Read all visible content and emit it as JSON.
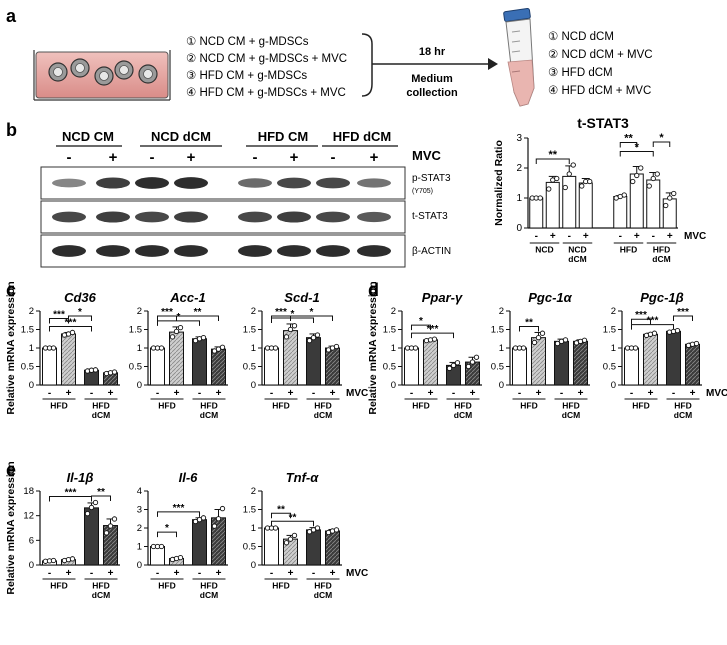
{
  "figure": {
    "panel_labels": [
      "a",
      "b",
      "c",
      "d",
      "e"
    ],
    "mvc_word": "MVC",
    "minus": "-",
    "plus": "+"
  },
  "panel_a": {
    "conditions": [
      "① NCD CM + g-MDSCs",
      "② NCD CM + g-MDSCs + MVC",
      "③ HFD CM + g-MDSCs",
      "④ HFD CM + g-MDSCs + MVC"
    ],
    "time": "18 hr",
    "collection": [
      "Medium",
      "collection"
    ],
    "outputs": [
      "① NCD dCM",
      "② NCD dCM + MVC",
      "③ HFD dCM",
      "④ HFD dCM + MVC"
    ]
  },
  "panel_b": {
    "blot_groups": [
      "NCD CM",
      "NCD dCM",
      "HFD CM",
      "HFD dCM"
    ],
    "mvc_label": "MVC",
    "blot_rows": [
      "p-STAT3",
      "t-STAT3",
      "β-ACTIN"
    ],
    "blot_row_sub": "(Y705)",
    "p_stat3_band_intensity": [
      0.45,
      0.85,
      0.95,
      0.95,
      0.6,
      0.8,
      0.8,
      0.55
    ],
    "t_stat3_band_intensity": [
      0.8,
      0.85,
      0.8,
      0.85,
      0.8,
      0.85,
      0.8,
      0.7
    ],
    "actin_band_intensity": [
      0.95,
      0.95,
      0.95,
      0.95,
      0.95,
      0.95,
      0.95,
      0.95
    ]
  },
  "chart_data": [
    {
      "type": "bar",
      "panel": "b",
      "title": "t-STAT3",
      "ylabel": "Normalized Ratio",
      "ylim": [
        0,
        3
      ],
      "yticks": [
        0,
        1,
        2,
        3
      ],
      "mvc": [
        "-",
        "+",
        "-",
        "+",
        "-",
        "+",
        "-",
        "+"
      ],
      "groups": [
        "NCD",
        "NCD dCM",
        "HFD",
        "HFD dCM"
      ],
      "values": [
        1.0,
        1.52,
        1.72,
        1.5,
        1.05,
        1.8,
        1.6,
        0.97
      ],
      "errors": [
        0.02,
        0.2,
        0.35,
        0.15,
        0.03,
        0.25,
        0.25,
        0.2
      ],
      "points": [
        [
          1.0,
          1.0,
          1.0
        ],
        [
          1.3,
          1.6,
          1.65
        ],
        [
          1.35,
          1.8,
          2.1
        ],
        [
          1.4,
          1.55,
          1.55
        ],
        [
          1.0,
          1.05,
          1.1
        ],
        [
          1.55,
          1.75,
          2.0
        ],
        [
          1.4,
          1.65,
          1.8
        ],
        [
          0.75,
          1.0,
          1.15
        ]
      ],
      "brackets": [
        [
          0,
          2,
          "**"
        ],
        [
          4,
          6,
          "*"
        ],
        [
          4,
          5,
          "**"
        ],
        [
          6,
          7,
          "*"
        ]
      ]
    },
    {
      "type": "bar",
      "panel": "c",
      "title": "Cd36",
      "ylabel": "Relative mRNA expression",
      "ylim": [
        0,
        2
      ],
      "yticks": [
        0,
        0.5,
        1,
        1.5,
        2
      ],
      "mvc": [
        "-",
        "+",
        "-",
        "+"
      ],
      "groups": [
        "HFD",
        "HFD dCM"
      ],
      "values": [
        1.0,
        1.38,
        0.4,
        0.33
      ],
      "errors": [
        0.02,
        0.04,
        0.03,
        0.03
      ],
      "points": [
        [
          1,
          1,
          1
        ],
        [
          1.35,
          1.38,
          1.42
        ],
        [
          0.38,
          0.4,
          0.41
        ],
        [
          0.31,
          0.33,
          0.35
        ]
      ],
      "brackets": [
        [
          0,
          2,
          "***"
        ],
        [
          0,
          1,
          "***"
        ],
        [
          1,
          2,
          "*"
        ]
      ]
    },
    {
      "type": "bar",
      "panel": "c",
      "title": "Acc-1",
      "ylabel": "",
      "ylim": [
        0,
        2
      ],
      "yticks": [
        0,
        0.5,
        1,
        1.5,
        2
      ],
      "mvc": [
        "-",
        "+",
        "-",
        "+"
      ],
      "groups": [
        "HFD",
        "HFD dCM"
      ],
      "values": [
        1.0,
        1.43,
        1.25,
        0.97
      ],
      "errors": [
        0.02,
        0.14,
        0.05,
        0.06
      ],
      "points": [
        [
          1,
          1,
          1
        ],
        [
          1.3,
          1.45,
          1.55
        ],
        [
          1.2,
          1.25,
          1.28
        ],
        [
          0.92,
          0.97,
          1.02
        ]
      ],
      "brackets": [
        [
          0,
          2,
          "*"
        ],
        [
          0,
          1,
          "***"
        ],
        [
          1,
          3,
          "**"
        ]
      ]
    },
    {
      "type": "bar",
      "panel": "c",
      "title": "Scd-1",
      "ylabel": "",
      "ylim": [
        0,
        2
      ],
      "yticks": [
        0,
        0.5,
        1,
        1.5,
        2
      ],
      "mvc": [
        "-",
        "+",
        "-",
        "+"
      ],
      "groups": [
        "HFD",
        "HFD dCM"
      ],
      "values": [
        1.0,
        1.47,
        1.28,
        1.0
      ],
      "errors": [
        0.02,
        0.18,
        0.1,
        0.05
      ],
      "points": [
        [
          1,
          1,
          1
        ],
        [
          1.3,
          1.5,
          1.6
        ],
        [
          1.2,
          1.28,
          1.35
        ],
        [
          0.95,
          1.0,
          1.04
        ]
      ],
      "brackets": [
        [
          0,
          2,
          "*"
        ],
        [
          0,
          1,
          "***"
        ],
        [
          1,
          3,
          "*"
        ]
      ]
    },
    {
      "type": "bar",
      "panel": "d",
      "title": "Ppar-γ",
      "ylabel": "Relative mRNA expression",
      "ylim": [
        0,
        2
      ],
      "yticks": [
        0,
        0.5,
        1,
        1.5,
        2
      ],
      "mvc": [
        "-",
        "+",
        "-",
        "+"
      ],
      "groups": [
        "HFD",
        "HFD dCM"
      ],
      "values": [
        1.0,
        1.22,
        0.53,
        0.62
      ],
      "errors": [
        0.02,
        0.02,
        0.08,
        0.13
      ],
      "points": [
        [
          1,
          1,
          1
        ],
        [
          1.2,
          1.22,
          1.24
        ],
        [
          0.45,
          0.53,
          0.6
        ],
        [
          0.5,
          0.62,
          0.75
        ]
      ],
      "brackets": [
        [
          0,
          2,
          "***"
        ],
        [
          0,
          1,
          "*"
        ]
      ]
    },
    {
      "type": "bar",
      "panel": "d",
      "title": "Pgc-1α",
      "ylabel": "",
      "ylim": [
        0,
        2
      ],
      "yticks": [
        0,
        0.5,
        1,
        1.5,
        2
      ],
      "mvc": [
        "-",
        "+",
        "-",
        "+"
      ],
      "groups": [
        "HFD",
        "HFD dCM"
      ],
      "values": [
        1.0,
        1.28,
        1.18,
        1.18
      ],
      "errors": [
        0.02,
        0.14,
        0.06,
        0.04
      ],
      "points": [
        [
          1,
          1,
          1
        ],
        [
          1.15,
          1.28,
          1.4
        ],
        [
          1.12,
          1.18,
          1.22
        ],
        [
          1.14,
          1.18,
          1.21
        ]
      ],
      "brackets": [
        [
          0,
          1,
          "**"
        ]
      ]
    },
    {
      "type": "bar",
      "panel": "d",
      "title": "Pgc-1β",
      "ylabel": "",
      "ylim": [
        0,
        2
      ],
      "yticks": [
        0,
        0.5,
        1,
        1.5,
        2
      ],
      "mvc": [
        "-",
        "+",
        "-",
        "+"
      ],
      "groups": [
        "HFD",
        "HFD dCM"
      ],
      "values": [
        1.0,
        1.37,
        1.45,
        1.1
      ],
      "errors": [
        0.02,
        0.03,
        0.02,
        0.03
      ],
      "points": [
        [
          1,
          1,
          1
        ],
        [
          1.34,
          1.37,
          1.4
        ],
        [
          1.43,
          1.45,
          1.47
        ],
        [
          1.07,
          1.1,
          1.12
        ]
      ],
      "brackets": [
        [
          0,
          2,
          "***"
        ],
        [
          0,
          1,
          "***"
        ],
        [
          2,
          3,
          "***"
        ]
      ]
    },
    {
      "type": "bar",
      "panel": "e",
      "title": "Il-1β",
      "ylabel": "Relative mRNA expression",
      "ylim": [
        0,
        18
      ],
      "yticks": [
        0,
        6,
        12,
        18
      ],
      "mvc": [
        "-",
        "+",
        "-",
        "+"
      ],
      "groups": [
        "HFD",
        "HFD dCM"
      ],
      "values": [
        1.0,
        1.3,
        13.9,
        9.6
      ],
      "errors": [
        0.1,
        0.2,
        1.2,
        1.6
      ],
      "points": [
        [
          0.9,
          1,
          1.1
        ],
        [
          1.1,
          1.3,
          1.5
        ],
        [
          12.5,
          14,
          15.2
        ],
        [
          7.8,
          9.5,
          11.2
        ]
      ],
      "brackets": [
        [
          0,
          2,
          "***"
        ],
        [
          2,
          3,
          "**"
        ]
      ]
    },
    {
      "type": "bar",
      "panel": "e",
      "title": "Il-6",
      "ylabel": "",
      "ylim": [
        0,
        4
      ],
      "yticks": [
        0,
        1,
        2,
        3,
        4
      ],
      "mvc": [
        "-",
        "+",
        "-",
        "+"
      ],
      "groups": [
        "HFD",
        "HFD dCM"
      ],
      "values": [
        1.0,
        0.35,
        2.45,
        2.55
      ],
      "errors": [
        0.02,
        0.05,
        0.1,
        0.45
      ],
      "points": [
        [
          1,
          1,
          1
        ],
        [
          0.3,
          0.35,
          0.4
        ],
        [
          2.35,
          2.45,
          2.55
        ],
        [
          2.1,
          2.5,
          3.05
        ]
      ],
      "brackets": [
        [
          0,
          2,
          "***"
        ],
        [
          0,
          1,
          "*"
        ]
      ]
    },
    {
      "type": "bar",
      "panel": "e",
      "title": "Tnf-α",
      "ylabel": "",
      "ylim": [
        0,
        2
      ],
      "yticks": [
        0,
        0.5,
        1,
        1.5,
        2
      ],
      "mvc": [
        "-",
        "+",
        "-",
        "+"
      ],
      "groups": [
        "HFD",
        "HFD dCM"
      ],
      "values": [
        1.0,
        0.7,
        0.95,
        0.92
      ],
      "errors": [
        0.02,
        0.1,
        0.06,
        0.04
      ],
      "points": [
        [
          1,
          1,
          1
        ],
        [
          0.6,
          0.7,
          0.8
        ],
        [
          0.9,
          0.95,
          1.0
        ],
        [
          0.88,
          0.92,
          0.95
        ]
      ],
      "brackets": [
        [
          0,
          2,
          "**"
        ],
        [
          0,
          1,
          "**"
        ]
      ]
    }
  ],
  "colors": {
    "bar_fills": [
      "#ffffff",
      "#d0d0d0",
      "#3a3a3a",
      "#5a5a5a"
    ],
    "btstat_fill": "#ffffff",
    "tube_cap": "#3a6fb5",
    "tube_medium": "#e9b5b0",
    "dish_medium": "#e7a8a4"
  }
}
